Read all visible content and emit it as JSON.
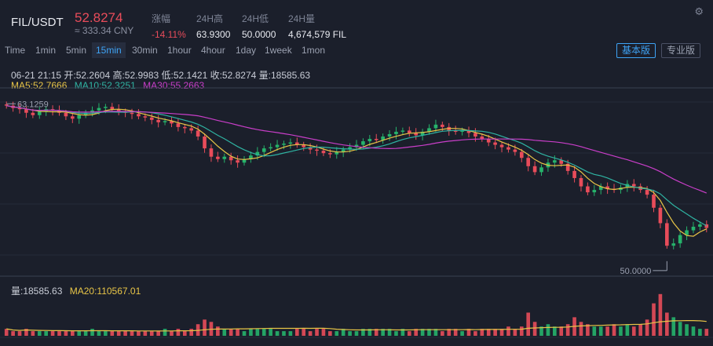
{
  "header": {
    "pair": "FIL/USDT",
    "price": "52.8274",
    "cny": "≈ 333.34 CNY",
    "stats": [
      {
        "label": "涨幅",
        "value": "-14.11%",
        "red": true
      },
      {
        "label": "24H高",
        "value": "63.9300",
        "red": false
      },
      {
        "label": "24H低",
        "value": "50.0000",
        "red": false
      },
      {
        "label": "24H量",
        "value": "4,674,579 FIL",
        "red": false
      }
    ]
  },
  "toolbar": {
    "timeframes": [
      "Time",
      "1min",
      "5min",
      "15min",
      "30min",
      "1hour",
      "4hour",
      "1day",
      "1week",
      "1mon"
    ],
    "active": "15min",
    "basic_label": "基本版",
    "pro_label": "专业版"
  },
  "info": {
    "datetime": "06-21 21:15",
    "open": "开:52.2604",
    "high": "高:52.9983",
    "low": "低:52.1421",
    "close": "收:52.8274",
    "vol": "量:18585.63",
    "ma5": "MA5:52.7666",
    "ma10": "MA10:52.3251",
    "ma30": "MA30:55.2663"
  },
  "volume_info": {
    "vol": "量:18585.63",
    "ma20": "MA20:110567.01"
  },
  "colors": {
    "up": "#26b36b",
    "down": "#e84c5a",
    "ma5": "#e8c547",
    "ma10": "#2fb3a2",
    "ma30": "#c93ec9",
    "accent": "#3ea3f5"
  },
  "chart_data": {
    "type": "candlestick",
    "annotations": {
      "max_label": "63.1259",
      "max_value": 63.1259,
      "min_label": "50.0000",
      "min_value": 50.0
    },
    "y_range": [
      49.0,
      64.2
    ],
    "close": [
      63.1,
      62.9,
      62.8,
      62.5,
      62.3,
      62.6,
      62.8,
      62.7,
      62.5,
      62.2,
      62.0,
      62.3,
      62.5,
      62.7,
      62.9,
      63.0,
      62.8,
      62.6,
      62.5,
      62.4,
      62.2,
      62.1,
      61.9,
      61.7,
      61.8,
      61.6,
      61.3,
      61.2,
      61.0,
      60.5,
      59.5,
      58.8,
      58.6,
      58.8,
      58.5,
      58.3,
      58.6,
      58.9,
      59.2,
      59.5,
      59.6,
      59.8,
      59.9,
      60.0,
      59.8,
      59.6,
      59.4,
      59.3,
      59.1,
      59.0,
      59.2,
      59.4,
      59.6,
      59.8,
      60.1,
      60.3,
      60.2,
      60.5,
      60.7,
      60.9,
      61.0,
      60.8,
      60.6,
      60.9,
      61.2,
      61.5,
      61.3,
      61.0,
      60.9,
      61.0,
      60.8,
      60.5,
      60.3,
      60.0,
      59.8,
      59.6,
      59.4,
      59.2,
      58.7,
      58.0,
      57.5,
      57.9,
      58.3,
      58.5,
      58.2,
      57.6,
      57.0,
      56.3,
      55.8,
      56.0,
      56.3,
      56.1,
      56.0,
      56.2,
      56.5,
      56.3,
      56.0,
      55.6,
      54.5,
      53.2,
      51.3,
      51.5,
      52.2,
      52.6,
      52.9,
      53.1,
      52.8
    ],
    "volume": [
      0.3,
      0.2,
      0.2,
      0.3,
      0.2,
      0.2,
      0.2,
      0.2,
      0.2,
      0.2,
      0.2,
      0.2,
      0.2,
      0.3,
      0.2,
      0.2,
      0.2,
      0.2,
      0.2,
      0.2,
      0.2,
      0.2,
      0.2,
      0.2,
      0.3,
      0.2,
      0.3,
      0.2,
      0.3,
      0.5,
      0.7,
      0.6,
      0.4,
      0.3,
      0.3,
      0.3,
      0.2,
      0.3,
      0.3,
      0.3,
      0.3,
      0.2,
      0.2,
      0.2,
      0.3,
      0.3,
      0.2,
      0.3,
      0.3,
      0.2,
      0.2,
      0.3,
      0.2,
      0.2,
      0.3,
      0.3,
      0.3,
      0.3,
      0.3,
      0.2,
      0.3,
      0.2,
      0.3,
      0.3,
      0.3,
      0.3,
      0.2,
      0.3,
      0.3,
      0.2,
      0.3,
      0.2,
      0.3,
      0.3,
      0.3,
      0.3,
      0.4,
      0.3,
      0.4,
      1.0,
      0.6,
      0.4,
      0.5,
      0.4,
      0.4,
      0.5,
      0.8,
      0.6,
      0.5,
      0.4,
      0.4,
      0.4,
      0.5,
      0.4,
      0.5,
      0.4,
      0.5,
      0.7,
      1.4,
      1.8,
      1.0,
      0.8,
      0.6,
      0.5,
      0.4,
      0.3,
      0.3
    ]
  }
}
